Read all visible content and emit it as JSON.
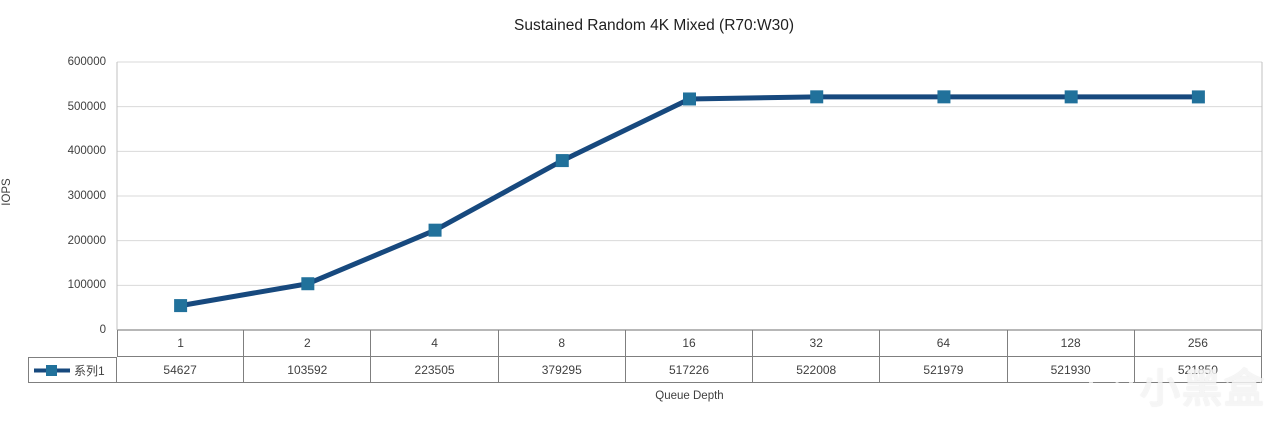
{
  "title": "Sustained Random 4K Mixed (R70:W30)",
  "y_axis": {
    "label": "IOPS",
    "ticks": [
      "600000",
      "500000",
      "400000",
      "300000",
      "200000",
      "100000",
      "0"
    ]
  },
  "x_axis": {
    "label": "Queue Depth"
  },
  "legend": {
    "series_label": "系列1"
  },
  "watermark": {
    "text": "小黑盒",
    "icon": "heybox-hexagon-logo"
  },
  "colors": {
    "line": "#17497E",
    "marker": "#21719B",
    "gridline": "#D9D9D9",
    "plot_border": "#C0C0C0",
    "axis_line": "#8C8C8C",
    "table_border": "#7F7F7F",
    "text": "#3F3F3F",
    "title_text": "#1F1F1F"
  },
  "chart_data": {
    "type": "line",
    "title": "Sustained Random 4K Mixed (R70:W30)",
    "xlabel": "Queue Depth",
    "ylabel": "IOPS",
    "categories": [
      "1",
      "2",
      "4",
      "8",
      "16",
      "32",
      "64",
      "128",
      "256"
    ],
    "series": [
      {
        "name": "系列1",
        "values": [
          54627,
          103592,
          223505,
          379295,
          517226,
          522008,
          521979,
          521930,
          521850
        ]
      }
    ],
    "ylim": [
      0,
      600000
    ],
    "ytick_step": 100000,
    "grid": true,
    "marker": "square",
    "legend_position": "data-table-left",
    "data_table_shown": true
  }
}
